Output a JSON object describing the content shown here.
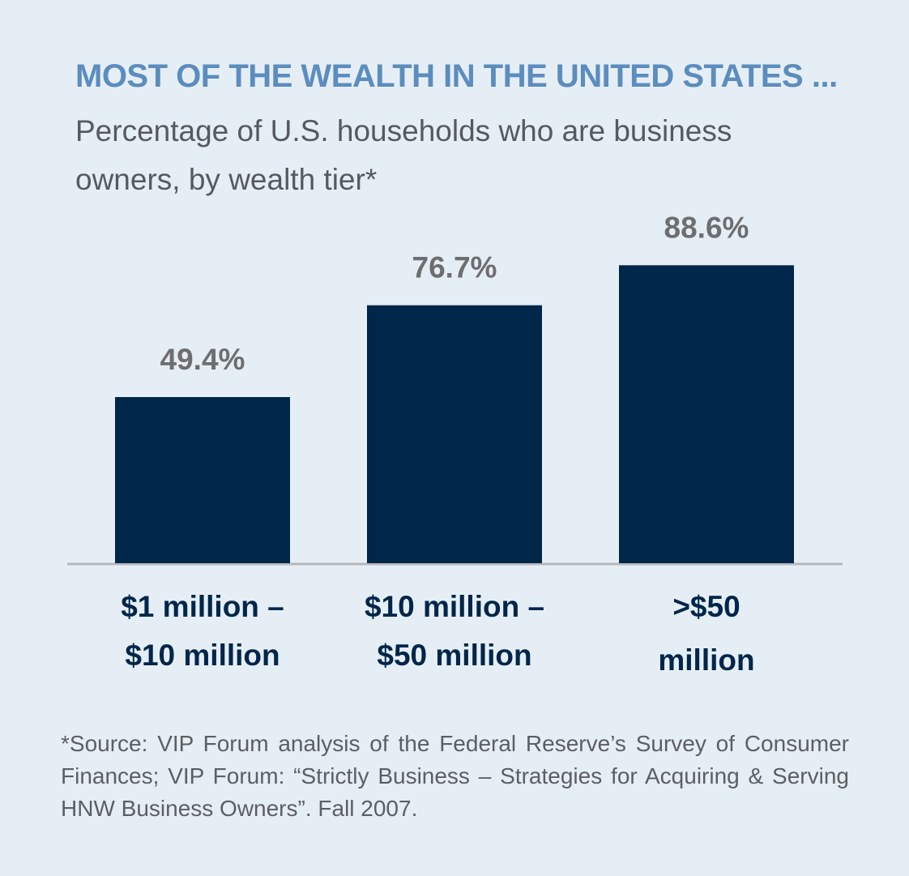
{
  "chart_data": {
    "type": "bar",
    "title": "MOST OF THE WEALTH IN THE UNITED STATES ...",
    "subtitle": "Percentage of U.S. households who are business owners, by wealth tier*",
    "categories": [
      "$1 million – $10 million",
      "$10 million – $50 million",
      ">$50 million"
    ],
    "category_lines": [
      [
        "$1 million –",
        "$10 million"
      ],
      [
        "$10 million –",
        "$50 million"
      ],
      [
        ">$50",
        "million"
      ]
    ],
    "values": [
      49.4,
      76.7,
      88.6
    ],
    "value_labels": [
      "49.4%",
      "76.7%",
      "88.6%"
    ],
    "ylim": [
      0,
      100
    ],
    "grid": false,
    "legend": "none",
    "bar_color": "#00264a",
    "label_color": "#6d6e70",
    "category_color": "#00264a"
  },
  "footnote": "*Source: VIP Forum analysis of the Federal Reserve’s Survey of Consumer Finances; VIP Forum: “Strictly Business – Strategies for Acquiring & Serving HNW Business Owners”. Fall 2007."
}
